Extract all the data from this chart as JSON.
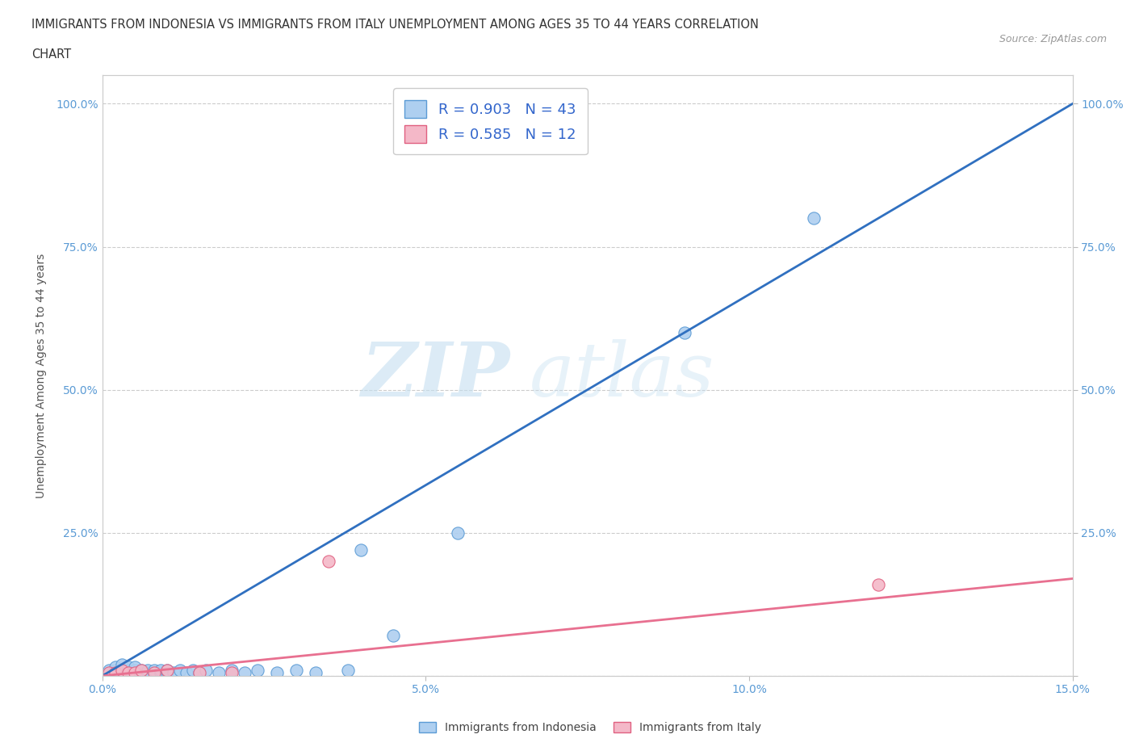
{
  "title_line1": "IMMIGRANTS FROM INDONESIA VS IMMIGRANTS FROM ITALY UNEMPLOYMENT AMONG AGES 35 TO 44 YEARS CORRELATION",
  "title_line2": "CHART",
  "source": "Source: ZipAtlas.com",
  "ylabel": "Unemployment Among Ages 35 to 44 years",
  "xlim": [
    0.0,
    0.15
  ],
  "ylim": [
    0.0,
    1.05
  ],
  "xticks": [
    0.0,
    0.05,
    0.1,
    0.15
  ],
  "xtick_labels": [
    "0.0%",
    "5.0%",
    "10.0%",
    "15.0%"
  ],
  "ytick_vals": [
    0.0,
    0.25,
    0.5,
    0.75,
    1.0
  ],
  "ytick_labels_left": [
    "",
    "25.0%",
    "50.0%",
    "75.0%",
    "100.0%"
  ],
  "ytick_labels_right": [
    "",
    "25.0%",
    "50.0%",
    "75.0%",
    "100.0%"
  ],
  "indonesia_color": "#aecff0",
  "indonesia_edge_color": "#5b9bd5",
  "italy_color": "#f4b8c8",
  "italy_edge_color": "#e06080",
  "trendline_indonesia_color": "#3070c0",
  "trendline_italy_color": "#e87090",
  "R_indonesia": 0.903,
  "N_indonesia": 43,
  "R_italy": 0.585,
  "N_italy": 12,
  "legend_indonesia": "Immigrants from Indonesia",
  "legend_italy": "Immigrants from Italy",
  "watermark_zip": "ZIP",
  "watermark_atlas": "atlas",
  "indo_trend_x0": 0.0,
  "indo_trend_y0": 0.0,
  "indo_trend_x1": 0.15,
  "indo_trend_y1": 1.0,
  "italy_trend_x0": 0.0,
  "italy_trend_y0": 0.0,
  "italy_trend_x1": 0.15,
  "italy_trend_y1": 0.17,
  "indonesia_x": [
    0.001,
    0.001,
    0.002,
    0.002,
    0.002,
    0.003,
    0.003,
    0.003,
    0.004,
    0.004,
    0.004,
    0.005,
    0.005,
    0.005,
    0.006,
    0.006,
    0.007,
    0.007,
    0.008,
    0.008,
    0.009,
    0.009,
    0.01,
    0.01,
    0.011,
    0.012,
    0.013,
    0.014,
    0.015,
    0.016,
    0.018,
    0.02,
    0.022,
    0.024,
    0.027,
    0.03,
    0.033,
    0.038,
    0.04,
    0.045,
    0.055,
    0.09,
    0.11
  ],
  "indonesia_y": [
    0.005,
    0.01,
    0.005,
    0.01,
    0.015,
    0.005,
    0.01,
    0.02,
    0.005,
    0.01,
    0.015,
    0.005,
    0.01,
    0.015,
    0.005,
    0.01,
    0.005,
    0.01,
    0.005,
    0.01,
    0.005,
    0.01,
    0.005,
    0.01,
    0.005,
    0.01,
    0.005,
    0.01,
    0.005,
    0.01,
    0.005,
    0.01,
    0.005,
    0.01,
    0.005,
    0.01,
    0.005,
    0.01,
    0.22,
    0.07,
    0.25,
    0.6,
    0.8
  ],
  "italy_x": [
    0.001,
    0.002,
    0.003,
    0.004,
    0.005,
    0.006,
    0.008,
    0.01,
    0.015,
    0.02,
    0.035,
    0.12
  ],
  "italy_y": [
    0.005,
    0.005,
    0.01,
    0.005,
    0.005,
    0.01,
    0.005,
    0.01,
    0.005,
    0.005,
    0.2,
    0.16
  ]
}
